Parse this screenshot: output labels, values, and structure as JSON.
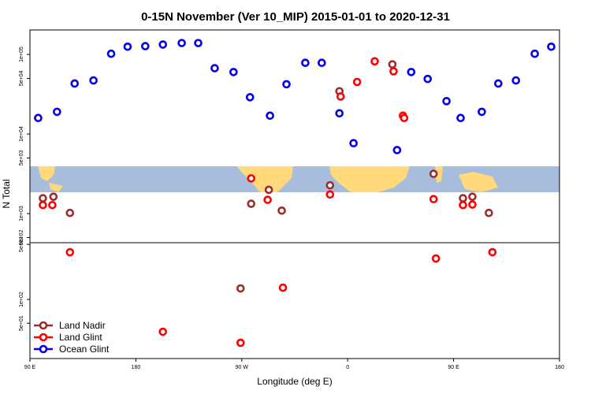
{
  "chart_data": {
    "type": "scatter",
    "title": "0-15N November (Ver 10_MIP)   2015-01-01 to 2020-12-31",
    "x_label": "Longitude (deg E)",
    "y_label": "N Total",
    "log_y": true,
    "legend": "bottomleft",
    "xlim": [
      90,
      540
    ],
    "xticks": [
      {
        "value": 90,
        "label": "90 E"
      },
      {
        "value": 180,
        "label": "180"
      },
      {
        "value": 270,
        "label": "90 W"
      },
      {
        "value": 360,
        "label": "0"
      },
      {
        "value": 450,
        "label": "90 E"
      },
      {
        "value": 540,
        "label": "180"
      }
    ],
    "panels": [
      {
        "ylim": [
          431,
          203000
        ],
        "yticks": [
          {
            "value": 100000,
            "label": "1e+05"
          },
          {
            "value": 50000,
            "label": "5e+04"
          },
          {
            "value": 10000,
            "label": "1e+04"
          },
          {
            "value": 5000,
            "label": "5e+03"
          },
          {
            "value": 1000,
            "label": "1e+03"
          },
          {
            "value": 500,
            "label": "5e+02"
          }
        ]
      },
      {
        "ylim": [
          17.8,
          525
        ],
        "yticks": [
          {
            "value": 500,
            "label": "5e+02"
          },
          {
            "value": 100,
            "label": "1e+02"
          },
          {
            "value": 50,
            "label": "5e+01"
          }
        ]
      }
    ],
    "series": [
      {
        "name": "Land Nadir",
        "color": "#9b2d2d",
        "x": [
          101,
          110,
          124,
          278,
          293,
          304,
          345,
          353,
          398,
          433,
          458,
          466,
          480,
          269
        ],
        "values": [
          1560,
          1630,
          1020,
          1330,
          1990,
          1090,
          2270,
          34500,
          75000,
          3160,
          1560,
          1630,
          1020,
          138
        ]
      },
      {
        "name": "Land Glint",
        "color": "#ff0000",
        "x": [
          101,
          109,
          278,
          292,
          345,
          354,
          368,
          383,
          399,
          407,
          408,
          433,
          458,
          466,
          124,
          305,
          435,
          483,
          203,
          269
        ],
        "values": [
          1280,
          1280,
          2770,
          1490,
          1740,
          29600,
          45100,
          81900,
          61400,
          17000,
          15900,
          1520,
          1280,
          1300,
          398,
          141,
          331,
          398,
          38.9,
          28.2
        ]
      },
      {
        "name": "Ocean Glint",
        "color": "#0000ee",
        "x": [
          97,
          113,
          128,
          144,
          159,
          173,
          188,
          203,
          219,
          233,
          247,
          263,
          277,
          294,
          308,
          324,
          338,
          353,
          365,
          402,
          414,
          428,
          444,
          456,
          474,
          488,
          503,
          519,
          533
        ],
        "values": [
          15900,
          19000,
          43100,
          47100,
          102000,
          125000,
          127000,
          133000,
          139000,
          139000,
          67100,
          60100,
          29000,
          17000,
          42200,
          78400,
          78400,
          18200,
          7670,
          6280,
          60100,
          49200,
          25900,
          15900,
          19000,
          43100,
          47100,
          102000,
          125000
        ]
      }
    ]
  }
}
